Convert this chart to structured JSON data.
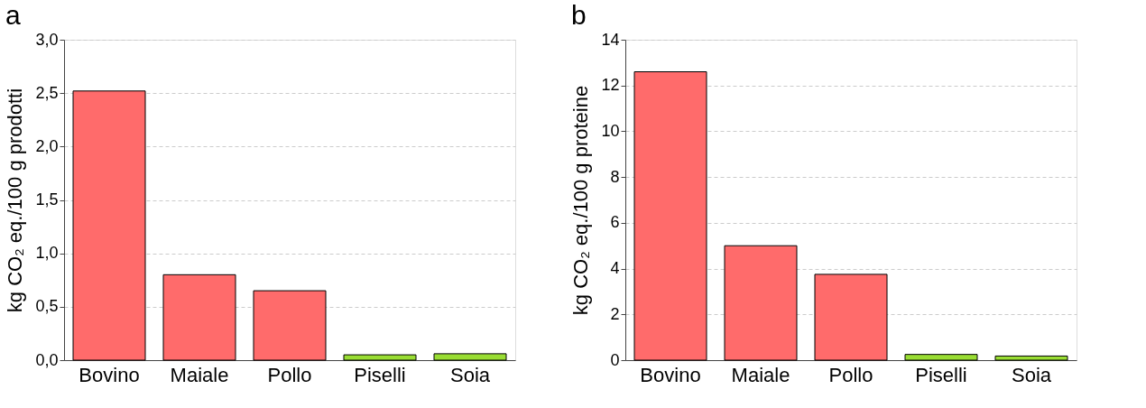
{
  "chart_data": [
    {
      "type": "bar",
      "title": "a",
      "ylabel": "kg CO₂ eq./100 g prodotti",
      "categories": [
        "Bovino",
        "Maiale",
        "Pollo",
        "Piselli",
        "Soia"
      ],
      "values": [
        2.52,
        0.8,
        0.65,
        0.05,
        0.06
      ],
      "colors": [
        "#ff6b6b",
        "#ff6b6b",
        "#ff6b6b",
        "#99dd33",
        "#99dd33"
      ],
      "ylim": [
        0,
        3
      ],
      "yticks": [
        {
          "value": 0,
          "label": "0,0"
        },
        {
          "value": 0.5,
          "label": "0,5"
        },
        {
          "value": 1,
          "label": "1,0"
        },
        {
          "value": 1.5,
          "label": "1,5"
        },
        {
          "value": 2,
          "label": "2,0"
        },
        {
          "value": 2.5,
          "label": "2,5"
        },
        {
          "value": 3,
          "label": "3,0"
        }
      ],
      "grid": "y",
      "legend": false
    },
    {
      "type": "bar",
      "title": "b",
      "ylabel": "kg CO₂ eq./100 g proteine",
      "categories": [
        "Bovino",
        "Maiale",
        "Pollo",
        "Piselli",
        "Soia"
      ],
      "values": [
        12.6,
        5.0,
        3.75,
        0.25,
        0.18
      ],
      "colors": [
        "#ff6b6b",
        "#ff6b6b",
        "#ff6b6b",
        "#99dd33",
        "#99dd33"
      ],
      "ylim": [
        0,
        14
      ],
      "yticks": [
        0,
        2,
        4,
        6,
        8,
        10,
        12,
        14
      ],
      "grid": "y",
      "legend": false
    }
  ]
}
